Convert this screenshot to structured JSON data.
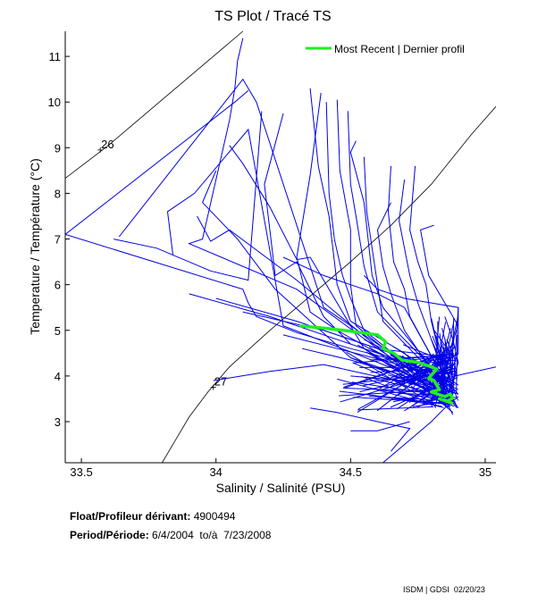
{
  "chart_data": {
    "type": "line",
    "title": "TS Plot / Tracé TS",
    "xlabel": "Salinity / Salinité (PSU)",
    "ylabel": "Temperature / Température (°C)",
    "xlim": [
      33.44,
      35.04
    ],
    "ylim": [
      2.1,
      11.55
    ],
    "xticks": [
      33.5,
      34,
      34.5,
      35
    ],
    "xtick_labels": [
      "33.5",
      "34",
      "34.5",
      "35"
    ],
    "yticks": [
      3,
      4,
      5,
      6,
      7,
      8,
      9,
      10,
      11
    ],
    "ytick_labels": [
      "3",
      "4",
      "5",
      "6",
      "7",
      "8",
      "9",
      "10",
      "11"
    ],
    "grid": false,
    "legend": {
      "position": "top-right",
      "entries": [
        "Most Recent | Dernier profil"
      ]
    },
    "colors": {
      "profiles": "#0000e6",
      "most_recent": "#22ee22",
      "density": "#000000"
    },
    "density_contours": [
      {
        "label": "26",
        "label_at": [
          33.57,
          8.95
        ],
        "x": [
          33.44,
          33.5,
          33.6,
          33.7,
          33.8,
          33.9,
          34.0,
          34.1
        ],
        "y": [
          8.33,
          8.6,
          9.05,
          9.55,
          10.05,
          10.55,
          11.05,
          11.55
        ]
      },
      {
        "label": "27",
        "label_at": [
          33.99,
          3.75
        ],
        "x": [
          33.8,
          33.85,
          33.9,
          33.97,
          34.05,
          34.2,
          34.35,
          34.5,
          34.65,
          34.8,
          34.95,
          35.04
        ],
        "y": [
          2.1,
          2.6,
          3.1,
          3.65,
          4.2,
          5.0,
          5.75,
          6.5,
          7.3,
          8.2,
          9.3,
          9.9
        ]
      }
    ],
    "series": [
      {
        "name": "Most Recent | Dernier profil",
        "style": "most_recent",
        "x": [
          34.31,
          34.4,
          34.5,
          34.6,
          34.63,
          34.62,
          34.66,
          34.69,
          34.75,
          34.8,
          34.82,
          34.79,
          34.81,
          34.83,
          34.8,
          34.85,
          34.87,
          34.88,
          34.86,
          34.83,
          34.88
        ],
        "y": [
          5.1,
          5.05,
          4.98,
          4.9,
          4.75,
          4.6,
          4.5,
          4.35,
          4.3,
          4.2,
          4.15,
          3.95,
          3.9,
          3.7,
          3.65,
          3.55,
          3.6,
          3.52,
          3.45,
          3.5,
          3.4
        ]
      },
      {
        "name": "profile",
        "x": [
          33.44,
          34.1,
          34.12,
          34.15,
          34.3,
          34.5,
          34.7,
          34.85,
          34.9
        ],
        "y": [
          7.1,
          5.9,
          5.6,
          5.3,
          4.95,
          4.6,
          4.3,
          3.95,
          3.6
        ]
      },
      {
        "name": "profile",
        "x": [
          33.44,
          34.07,
          34.12
        ],
        "y": [
          7.1,
          10.0,
          10.25
        ]
      },
      {
        "name": "profile",
        "x": [
          34.1,
          34.08,
          34.07,
          34.05,
          33.95,
          33.9,
          34.3,
          34.6,
          34.88
        ],
        "y": [
          11.4,
          10.9,
          10.3,
          9.6,
          7.0,
          6.9,
          5.9,
          4.6,
          3.5
        ]
      },
      {
        "name": "profile",
        "x": [
          33.62,
          33.78,
          33.98,
          34.12,
          34.17
        ],
        "y": [
          7.0,
          6.8,
          6.3,
          6.1,
          9.8
        ]
      },
      {
        "name": "profile",
        "x": [
          33.64,
          34.1,
          34.15,
          34.4,
          34.85
        ],
        "y": [
          7.05,
          10.5,
          10.0,
          5.5,
          3.7
        ]
      },
      {
        "name": "profile",
        "x": [
          33.84,
          33.82,
          33.92,
          34.12,
          34.25,
          34.6,
          34.9
        ],
        "y": [
          6.65,
          7.6,
          8.0,
          9.4,
          5.1,
          4.3,
          3.6
        ]
      },
      {
        "name": "profile",
        "x": [
          33.93,
          33.98,
          34.05,
          34.3,
          34.75
        ],
        "y": [
          7.5,
          6.95,
          7.2,
          6.1,
          3.9
        ]
      },
      {
        "name": "profile",
        "x": [
          34.0,
          33.95,
          34.08,
          34.22,
          34.5,
          34.88
        ],
        "y": [
          8.5,
          7.8,
          7.0,
          5.9,
          4.4,
          3.5
        ]
      },
      {
        "name": "profile",
        "x": [
          34.05,
          34.1,
          34.2,
          34.3,
          34.35,
          34.55,
          34.85
        ],
        "y": [
          9.05,
          8.65,
          7.7,
          6.55,
          6.6,
          4.6,
          3.4
        ]
      },
      {
        "name": "profile",
        "x": [
          34.25,
          34.18,
          34.22,
          34.3,
          34.4,
          34.5
        ],
        "y": [
          9.75,
          8.2,
          6.2,
          6.5,
          5.3,
          4.7
        ]
      },
      {
        "name": "profile",
        "x": [
          34.35,
          34.38,
          34.42,
          34.45,
          34.5,
          34.7,
          34.85
        ],
        "y": [
          10.3,
          8.6,
          7.5,
          6.0,
          5.2,
          4.5,
          3.6
        ]
      },
      {
        "name": "profile",
        "x": [
          34.39,
          34.35,
          34.3,
          34.35,
          34.45,
          34.6
        ],
        "y": [
          10.2,
          8.4,
          6.6,
          5.4,
          5.0,
          4.5
        ]
      },
      {
        "name": "profile",
        "x": [
          34.41,
          34.42,
          34.44,
          34.47,
          34.5,
          34.55,
          34.85
        ],
        "y": [
          10.0,
          8.0,
          7.0,
          6.2,
          5.7,
          5.0,
          3.6
        ]
      },
      {
        "name": "profile",
        "x": [
          34.45,
          34.46,
          34.5,
          34.5,
          34.52,
          34.75
        ],
        "y": [
          10.05,
          8.5,
          7.2,
          6.0,
          5.1,
          4.0
        ]
      },
      {
        "name": "profile",
        "x": [
          34.49,
          34.5,
          34.52,
          34.55,
          34.6,
          34.8
        ],
        "y": [
          9.8,
          8.2,
          7.5,
          6.4,
          5.4,
          4.2
        ]
      },
      {
        "name": "profile",
        "x": [
          34.52,
          34.5,
          34.55,
          34.58,
          34.62,
          34.8
        ],
        "y": [
          9.15,
          8.9,
          7.8,
          6.2,
          5.5,
          4.2
        ]
      },
      {
        "name": "profile",
        "x": [
          34.55,
          34.56,
          34.58,
          34.6,
          34.62,
          34.85
        ],
        "y": [
          8.8,
          7.6,
          6.8,
          6.0,
          5.2,
          3.8
        ]
      },
      {
        "name": "profile",
        "x": [
          34.65,
          34.64,
          34.66,
          34.7,
          34.72,
          34.85
        ],
        "y": [
          8.6,
          7.6,
          6.5,
          5.9,
          5.3,
          3.9
        ]
      },
      {
        "name": "profile",
        "x": [
          34.7,
          34.68,
          34.72,
          34.75,
          34.8,
          34.86
        ],
        "y": [
          8.3,
          7.4,
          6.2,
          5.6,
          4.8,
          3.8
        ]
      },
      {
        "name": "profile",
        "x": [
          34.65,
          34.6,
          34.62,
          34.65,
          34.7,
          34.85
        ],
        "y": [
          7.8,
          7.2,
          6.4,
          5.8,
          5.0,
          3.7
        ]
      },
      {
        "name": "profile",
        "x": [
          34.74,
          34.72,
          34.75,
          34.78,
          34.8,
          34.85
        ],
        "y": [
          8.6,
          7.2,
          6.5,
          6.0,
          5.2,
          4.0
        ]
      },
      {
        "name": "profile",
        "x": [
          34.81,
          34.76,
          34.79,
          34.84,
          34.87,
          34.9
        ],
        "y": [
          7.3,
          7.2,
          6.2,
          5.7,
          5.4,
          5.1
        ]
      },
      {
        "name": "profile",
        "x": [
          34.55,
          34.6,
          34.7,
          34.8,
          34.9,
          34.88
        ],
        "y": [
          6.2,
          5.9,
          5.7,
          5.6,
          5.5,
          3.6
        ]
      },
      {
        "name": "profile",
        "x": [
          34.25,
          34.4,
          34.5,
          34.6,
          34.7,
          34.85
        ],
        "y": [
          6.6,
          6.2,
          6.0,
          5.8,
          5.5,
          3.9
        ]
      },
      {
        "name": "profile",
        "x": [
          33.99,
          34.2,
          34.4,
          34.55,
          34.75,
          34.87
        ],
        "y": [
          3.9,
          4.1,
          4.25,
          4.05,
          3.8,
          3.5
        ]
      },
      {
        "name": "profile",
        "x": [
          34.0,
          34.3,
          34.5,
          34.7,
          34.9
        ],
        "y": [
          5.7,
          5.2,
          4.8,
          4.4,
          4.0
        ]
      },
      {
        "name": "profile",
        "x": [
          34.1,
          34.4,
          34.6,
          34.8,
          34.9
        ],
        "y": [
          5.4,
          5.0,
          4.6,
          4.2,
          3.8
        ]
      },
      {
        "name": "profile",
        "x": [
          33.9,
          34.2,
          34.5,
          34.7,
          34.88
        ],
        "y": [
          5.8,
          5.3,
          4.7,
          4.3,
          3.9
        ]
      },
      {
        "name": "profile",
        "x": [
          34.25,
          34.45,
          34.65,
          34.8,
          34.9
        ],
        "y": [
          4.9,
          4.6,
          4.3,
          4.0,
          3.7
        ]
      },
      {
        "name": "profile",
        "x": [
          34.32,
          34.5,
          34.7,
          34.85
        ],
        "y": [
          4.6,
          4.35,
          4.0,
          3.7
        ]
      },
      {
        "name": "profile",
        "x": [
          34.5,
          34.7,
          34.85,
          35.04
        ],
        "y": [
          4.0,
          3.9,
          3.95,
          4.2
        ]
      },
      {
        "name": "profile",
        "x": [
          34.35,
          34.45,
          34.6,
          34.72,
          34.65
        ],
        "y": [
          3.3,
          3.2,
          3.0,
          2.85,
          2.35
        ]
      },
      {
        "name": "profile",
        "x": [
          34.5,
          34.6,
          34.72
        ],
        "y": [
          2.8,
          2.8,
          3.0
        ]
      },
      {
        "name": "profile",
        "x": [
          34.62,
          34.7,
          34.8,
          34.85,
          34.9
        ],
        "y": [
          2.1,
          2.5,
          3.0,
          3.3,
          3.55
        ]
      },
      {
        "name": "profile",
        "x": [
          34.55,
          34.65,
          34.75,
          34.85,
          34.9,
          34.9
        ],
        "y": [
          4.8,
          4.5,
          4.2,
          3.8,
          4.5,
          5.5
        ]
      },
      {
        "name": "profile",
        "x": [
          34.85,
          34.88,
          34.9,
          34.88,
          34.86,
          34.9
        ],
        "y": [
          5.3,
          4.8,
          4.3,
          3.9,
          3.6,
          3.3
        ]
      },
      {
        "name": "profile",
        "x": [
          34.8,
          34.83,
          34.87,
          34.85,
          34.82,
          34.88
        ],
        "y": [
          4.8,
          4.4,
          4.1,
          3.8,
          3.5,
          3.2
        ]
      },
      {
        "name": "profile",
        "x": [
          34.75,
          34.8,
          34.84,
          34.82,
          34.86
        ],
        "y": [
          4.5,
          4.2,
          3.9,
          3.6,
          3.3
        ]
      },
      {
        "name": "profile",
        "x": [
          34.7,
          34.78,
          34.82,
          34.85,
          34.88
        ],
        "y": [
          4.3,
          4.0,
          3.7,
          3.5,
          3.15
        ]
      }
    ]
  },
  "info": {
    "float_label": "Float/Profileur dérivant:",
    "float_value": "4900494",
    "period_label": "Period/Période:",
    "period_value": "6/4/2004  to/à  7/23/2008"
  },
  "footer": "ISDM | GDSI  02/20/23"
}
